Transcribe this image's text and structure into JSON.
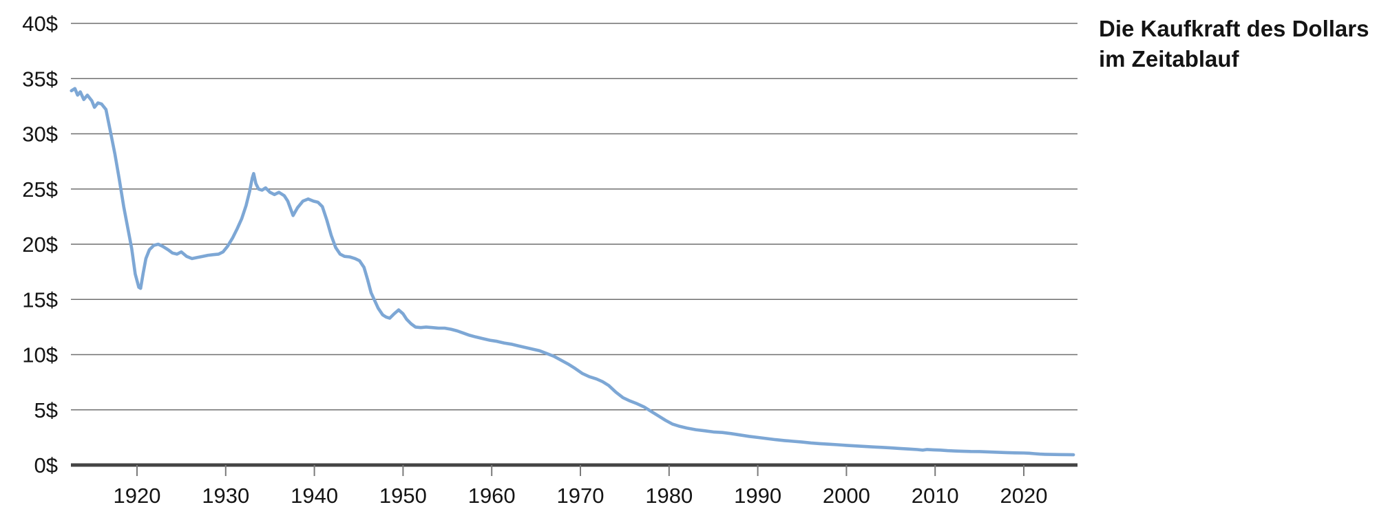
{
  "title": {
    "line1": "Die Kaufkraft des Dollars",
    "line2": "im Zeitablauf"
  },
  "chart_data": {
    "type": "line",
    "title": "Die Kaufkraft des Dollars im Zeitablauf",
    "xlabel": "",
    "ylabel": "",
    "xlim": [
      1912.6,
      2026
    ],
    "ylim": [
      0,
      40
    ],
    "grid": true,
    "legend_position": "none",
    "x_ticks": [
      1920,
      1930,
      1940,
      1950,
      1960,
      1970,
      1980,
      1990,
      2000,
      2010,
      2020
    ],
    "x_tick_labels": [
      "1920",
      "1930",
      "1940",
      "1950",
      "1960",
      "1970",
      "1980",
      "1990",
      "2000",
      "2010",
      "2020"
    ],
    "y_ticks": [
      0,
      5,
      10,
      15,
      20,
      25,
      30,
      35,
      40
    ],
    "y_tick_labels": [
      "0$",
      "5$",
      "10$",
      "15$",
      "20$",
      "25$",
      "30$",
      "35$",
      "40$"
    ],
    "colors": {
      "line": "#7da7d5",
      "gridline": "#6f6f6f",
      "axis": "#444444",
      "tick": "#7a7a7a",
      "text": "#141414",
      "background": "#ffffff"
    },
    "series": [
      {
        "name": "Kaufkraft des Dollars ($)",
        "x": [
          1912.6,
          1913,
          1913.3,
          1913.6,
          1914,
          1914.4,
          1914.9,
          1915.2,
          1915.6,
          1916,
          1916.5,
          1917,
          1917.5,
          1918,
          1918.5,
          1919,
          1919.4,
          1919.8,
          1920.2,
          1920.4,
          1920.7,
          1921,
          1921.4,
          1921.9,
          1922.4,
          1922.9,
          1923.5,
          1924,
          1924.5,
          1925,
          1925.6,
          1926.2,
          1926.8,
          1927.4,
          1928,
          1928.6,
          1929.2,
          1929.7,
          1930.2,
          1930.8,
          1931.3,
          1931.8,
          1932.3,
          1932.7,
          1933,
          1933.15,
          1933.4,
          1933.7,
          1934.1,
          1934.5,
          1935,
          1935.5,
          1936,
          1936.6,
          1937,
          1937.6,
          1938.1,
          1938.7,
          1939.3,
          1939.9,
          1940.4,
          1940.9,
          1941.4,
          1941.9,
          1942.4,
          1942.9,
          1943.4,
          1944,
          1944.6,
          1945.1,
          1945.6,
          1946,
          1946.4,
          1946.8,
          1947.2,
          1947.7,
          1948.1,
          1948.5,
          1949,
          1949.5,
          1950,
          1950.4,
          1950.9,
          1951.4,
          1952,
          1952.6,
          1953.3,
          1954,
          1954.7,
          1955.4,
          1956.1,
          1956.8,
          1957.5,
          1958.2,
          1959,
          1959.8,
          1960.6,
          1961.4,
          1962.2,
          1963,
          1963.8,
          1964.6,
          1965.4,
          1966.2,
          1967,
          1967.8,
          1968.6,
          1969.4,
          1970.2,
          1971,
          1971.8,
          1972.5,
          1973.2,
          1974,
          1974.8,
          1975.6,
          1976.4,
          1977.2,
          1978,
          1978.8,
          1979.6,
          1980.4,
          1981.2,
          1982,
          1983,
          1984,
          1985,
          1986,
          1987,
          1988,
          1989,
          1990,
          1991,
          1992,
          1993,
          1994,
          1995,
          1996,
          1997,
          1998,
          1999,
          2000,
          2001,
          2002,
          2003,
          2004,
          2005,
          2006,
          2007,
          2008,
          2008.6,
          2009.1,
          2009.8,
          2010.6,
          2011.4,
          2012.2,
          2013,
          2014,
          2015,
          2016,
          2017,
          2018,
          2019,
          2020,
          2020.6,
          2021.2,
          2021.8,
          2022.4,
          2023,
          2024,
          2025,
          2025.6
        ],
        "y": [
          33.9,
          34.1,
          33.5,
          33.8,
          33.1,
          33.5,
          33.0,
          32.4,
          32.8,
          32.7,
          32.2,
          30.2,
          28.2,
          25.9,
          23.4,
          21.3,
          19.6,
          17.3,
          16.1,
          16.0,
          17.4,
          18.7,
          19.5,
          19.9,
          20.0,
          19.8,
          19.5,
          19.2,
          19.1,
          19.3,
          18.9,
          18.7,
          18.8,
          18.9,
          19.0,
          19.05,
          19.1,
          19.3,
          19.8,
          20.6,
          21.4,
          22.3,
          23.5,
          24.8,
          26.0,
          26.4,
          25.5,
          25.0,
          24.9,
          25.1,
          24.7,
          24.5,
          24.7,
          24.4,
          23.9,
          22.6,
          23.3,
          23.9,
          24.1,
          23.9,
          23.8,
          23.4,
          22.2,
          20.8,
          19.7,
          19.1,
          18.9,
          18.85,
          18.7,
          18.5,
          17.9,
          16.8,
          15.6,
          14.9,
          14.2,
          13.6,
          13.4,
          13.3,
          13.7,
          14.05,
          13.7,
          13.2,
          12.8,
          12.5,
          12.45,
          12.5,
          12.45,
          12.4,
          12.4,
          12.3,
          12.15,
          11.95,
          11.75,
          11.6,
          11.45,
          11.3,
          11.2,
          11.05,
          10.95,
          10.8,
          10.65,
          10.5,
          10.35,
          10.1,
          9.85,
          9.5,
          9.15,
          8.75,
          8.3,
          8.0,
          7.8,
          7.55,
          7.2,
          6.6,
          6.1,
          5.8,
          5.55,
          5.25,
          4.85,
          4.45,
          4.05,
          3.7,
          3.5,
          3.35,
          3.2,
          3.1,
          3.0,
          2.95,
          2.85,
          2.72,
          2.6,
          2.5,
          2.4,
          2.3,
          2.22,
          2.15,
          2.08,
          2.0,
          1.94,
          1.89,
          1.84,
          1.78,
          1.73,
          1.69,
          1.64,
          1.6,
          1.55,
          1.5,
          1.45,
          1.4,
          1.35,
          1.41,
          1.38,
          1.35,
          1.3,
          1.27,
          1.25,
          1.23,
          1.22,
          1.19,
          1.16,
          1.13,
          1.1,
          1.09,
          1.07,
          1.03,
          0.99,
          0.97,
          0.96,
          0.95,
          0.94,
          0.93
        ]
      }
    ]
  }
}
